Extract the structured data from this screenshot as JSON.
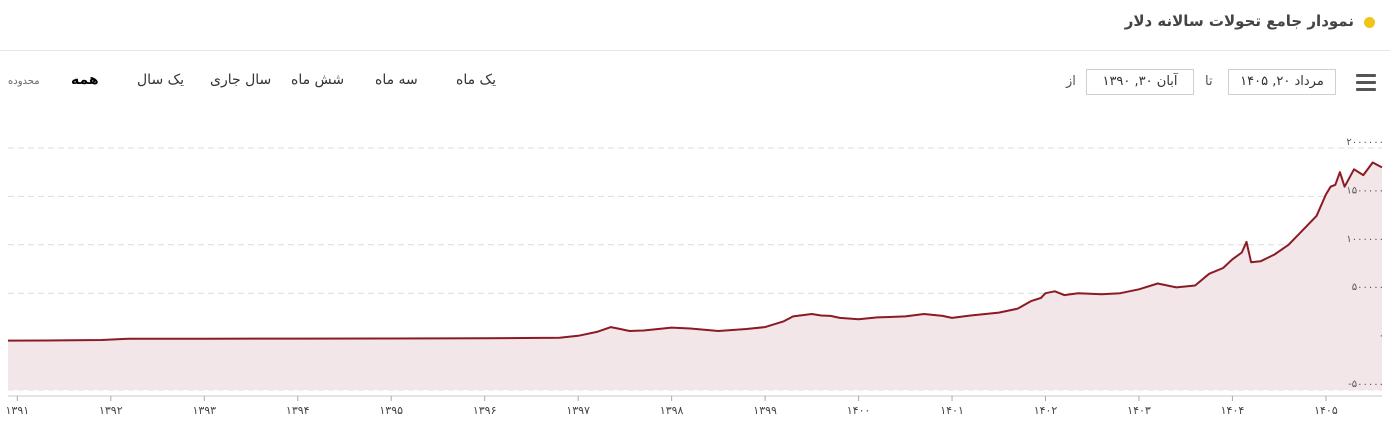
{
  "header": {
    "title": "نمودار جامع تحولات سالانه دلار",
    "dot_color": "#f0c419"
  },
  "toolbar": {
    "menu_icon": "hamburger-icon",
    "date_from": "مرداد ۲۰, ۱۴۰۵",
    "to_label": "تا",
    "date_to": "آبان ۳۰, ۱۳۹۰",
    "from_label": "از",
    "ranges": [
      "یک ماه",
      "سه ماه",
      "شش ماه",
      "سال جاری",
      "یک سال",
      "همه"
    ],
    "active_range": "همه",
    "range_label": "محدوده"
  },
  "chart_data": {
    "type": "area",
    "title": "",
    "xlabel": "",
    "ylabel": "",
    "line_color": "#8b1a24",
    "fill_color": "#f3e6e8",
    "grid": true,
    "ylim": [
      -500000,
      2000000
    ],
    "yticks": [
      -500000,
      0,
      500000,
      1000000,
      1500000,
      2000000
    ],
    "ytick_labels": [
      "-۵۰۰۰۰۰",
      "۰",
      "۵۰۰۰۰۰",
      "۱۰۰۰۰۰۰",
      "۱۵۰۰۰۰۰",
      "۲۰۰۰۰۰۰"
    ],
    "xlim": [
      1390.9,
      1405.6
    ],
    "xticks": [
      1391,
      1392,
      1393,
      1394,
      1395,
      1396,
      1397,
      1398,
      1399,
      1400,
      1401,
      1402,
      1403,
      1404,
      1405
    ],
    "xtick_labels": [
      "۱۳۹۱",
      "۱۳۹۲",
      "۱۳۹۳",
      "۱۳۹۴",
      "۱۳۹۵",
      "۱۳۹۶",
      "۱۳۹۷",
      "۱۳۹۸",
      "۱۳۹۹",
      "۱۴۰۰",
      "۱۴۰۱",
      "۱۴۰۲",
      "۱۴۰۳",
      "۱۴۰۴",
      "۱۴۰۵"
    ],
    "series": [
      {
        "x": [
          1390.9,
          1391.3,
          1391.9,
          1392.2,
          1393.0,
          1394.0,
          1395.0,
          1396.0,
          1396.8,
          1397.0,
          1397.2,
          1397.35,
          1397.45,
          1397.55,
          1397.7,
          1398.0,
          1398.2,
          1398.5,
          1398.8,
          1399.0,
          1399.2,
          1399.3,
          1399.5,
          1399.6,
          1399.7,
          1399.8,
          1400.0,
          1400.2,
          1400.5,
          1400.7,
          1400.9,
          1401.0,
          1401.2,
          1401.5,
          1401.7,
          1401.85,
          1401.95,
          1402.0,
          1402.1,
          1402.2,
          1402.35,
          1402.6,
          1402.8,
          1403.0,
          1403.2,
          1403.4,
          1403.6,
          1403.75,
          1403.9,
          1404.0,
          1404.1,
          1404.15,
          1404.2,
          1404.3,
          1404.45,
          1404.6,
          1404.75,
          1404.9,
          1405.0,
          1405.05,
          1405.1,
          1405.15,
          1405.2,
          1405.3,
          1405.4,
          1405.5,
          1405.6
        ],
        "y": [
          10000,
          11000,
          17000,
          30000,
          30000,
          31000,
          32000,
          34000,
          40000,
          60000,
          100000,
          150000,
          130000,
          110000,
          115000,
          145000,
          135000,
          110000,
          130000,
          150000,
          210000,
          260000,
          285000,
          270000,
          265000,
          245000,
          230000,
          250000,
          260000,
          285000,
          265000,
          245000,
          270000,
          300000,
          340000,
          420000,
          450000,
          500000,
          520000,
          480000,
          500000,
          490000,
          500000,
          540000,
          600000,
          560000,
          580000,
          700000,
          760000,
          850000,
          920000,
          1030000,
          820000,
          830000,
          900000,
          1000000,
          1150000,
          1300000,
          1520000,
          1600000,
          1620000,
          1750000,
          1600000,
          1780000,
          1720000,
          1850000,
          1800000
        ]
      }
    ]
  }
}
